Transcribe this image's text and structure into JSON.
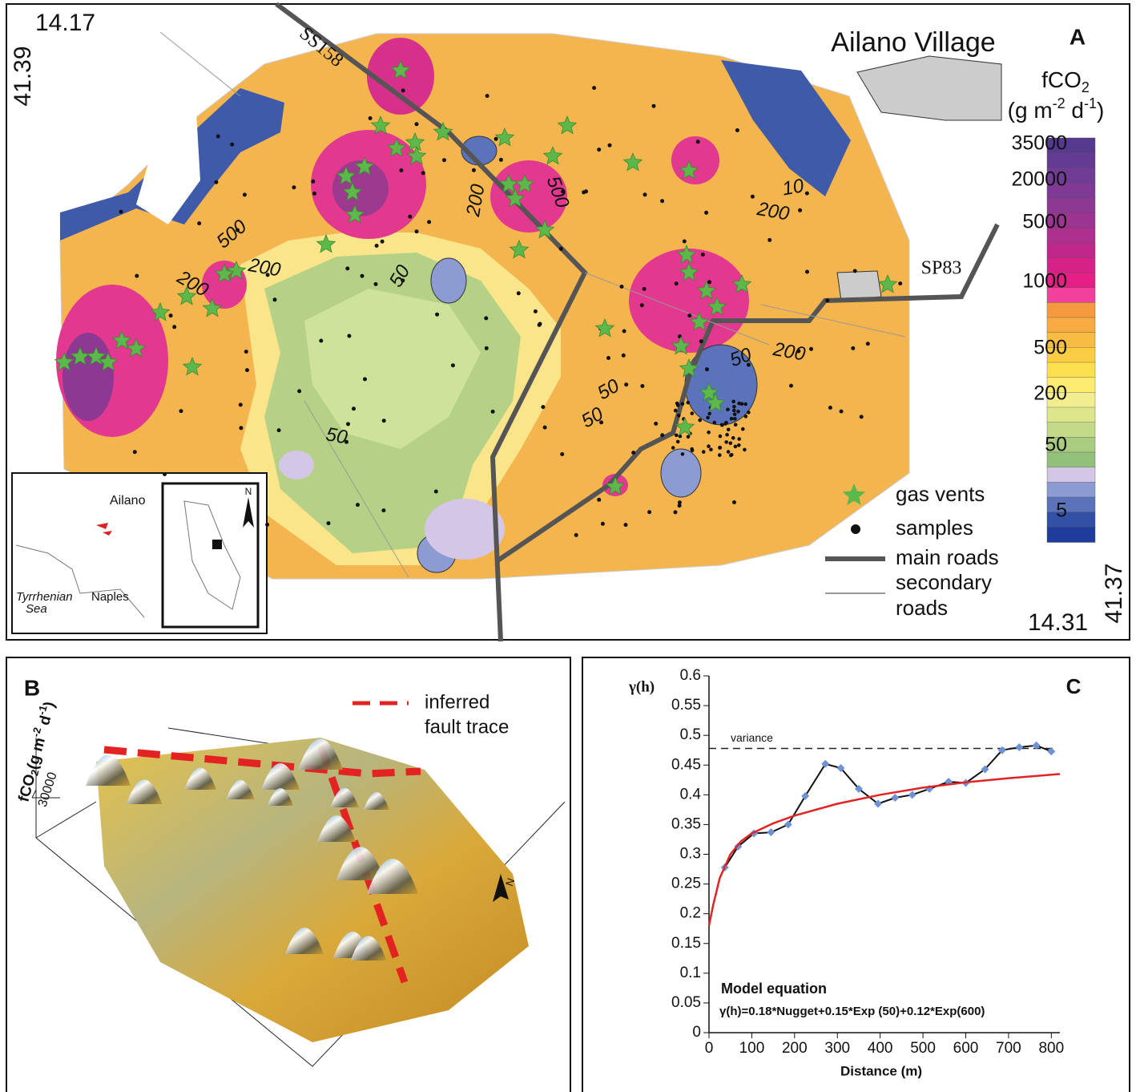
{
  "panel_a": {
    "label": "A",
    "title": "Ailano Village",
    "coord_top": [
      14.17,
      41.39
    ],
    "coord_bottom": [
      14.31,
      41.37
    ],
    "colorbar": {
      "title": [
        "fCO",
        "2",
        "(g m",
        "-2",
        " d",
        "-1",
        ")"
      ],
      "ticks": [
        35000,
        20000,
        5000,
        1000,
        500,
        200,
        50,
        5
      ],
      "colors": [
        "#553a8f",
        "#633b93",
        "#713c95",
        "#7f3a95",
        "#8d3893",
        "#9c3591",
        "#ad2f8e",
        "#c0278b",
        "#d52188",
        "#e61f85",
        "#f2419c",
        "#f59a3f",
        "#f7ab42",
        "#f9bc43",
        "#fbcd44",
        "#fde04f",
        "#fdeb72",
        "#f2ee90",
        "#dde68b",
        "#c4da86",
        "#a9cc80",
        "#93c07a",
        "#d4c6e6",
        "#8d9bd3",
        "#5a73bb",
        "#3250a5",
        "#1e3c9b"
      ]
    },
    "contour_labels": [
      500,
      200,
      200,
      50,
      200,
      500,
      50,
      50,
      50,
      200,
      50,
      200,
      10
    ],
    "roads": [
      "SS158",
      "SP83"
    ],
    "legend": [
      "gas vents",
      "samples",
      "main roads",
      "secondary",
      "roads"
    ],
    "inset": [
      "Ailano",
      "Tyrrhenian",
      "Sea",
      "Naples",
      "N"
    ]
  },
  "panel_b": {
    "label": "B",
    "legend": [
      "inferred",
      "fault trace"
    ],
    "axis_label": [
      "fCO",
      "2",
      "(g m",
      "-2",
      " d",
      "-1",
      ")"
    ],
    "tick": 30000,
    "north": "N"
  },
  "chart_data": {
    "type": "line",
    "panel_label": "C",
    "xlabel": "Distance (m)",
    "ylabel": "γ(h)",
    "xlim": [
      0,
      820
    ],
    "ylim": [
      0,
      0.6
    ],
    "xticks": [
      0,
      100,
      200,
      300,
      400,
      500,
      600,
      700,
      800
    ],
    "yticks": [
      0,
      0.05,
      0.1,
      0.15,
      0.2,
      0.25,
      0.3,
      0.35,
      0.4,
      0.45,
      0.5,
      0.55,
      0.6
    ],
    "series": [
      {
        "color": "#111111",
        "marker_color": "#6d93d6",
        "x": [
          37,
          68,
          105,
          145,
          185,
          225,
          272,
          308,
          350,
          395,
          435,
          475,
          515,
          560,
          600,
          645,
          685,
          725,
          765,
          800
        ],
        "values": [
          0.278,
          0.313,
          0.335,
          0.337,
          0.35,
          0.398,
          0.452,
          0.445,
          0.41,
          0.385,
          0.395,
          0.4,
          0.41,
          0.422,
          0.42,
          0.443,
          0.475,
          0.48,
          0.483,
          0.473
        ]
      },
      {
        "color": "#e02424",
        "x": [
          0,
          10,
          25,
          50,
          75,
          100,
          150,
          200,
          300,
          400,
          500,
          600,
          700,
          820
        ],
        "values": [
          0.18,
          0.215,
          0.26,
          0.3,
          0.322,
          0.335,
          0.352,
          0.365,
          0.385,
          0.4,
          0.412,
          0.421,
          0.428,
          0.435
        ]
      }
    ],
    "variance": {
      "value": 0.478,
      "label": "variance"
    },
    "annotations": [
      "Model equation",
      "γ(h)=0.18*Nugget+0.15*Exp (50)+0.12*Exp(600)"
    ]
  }
}
